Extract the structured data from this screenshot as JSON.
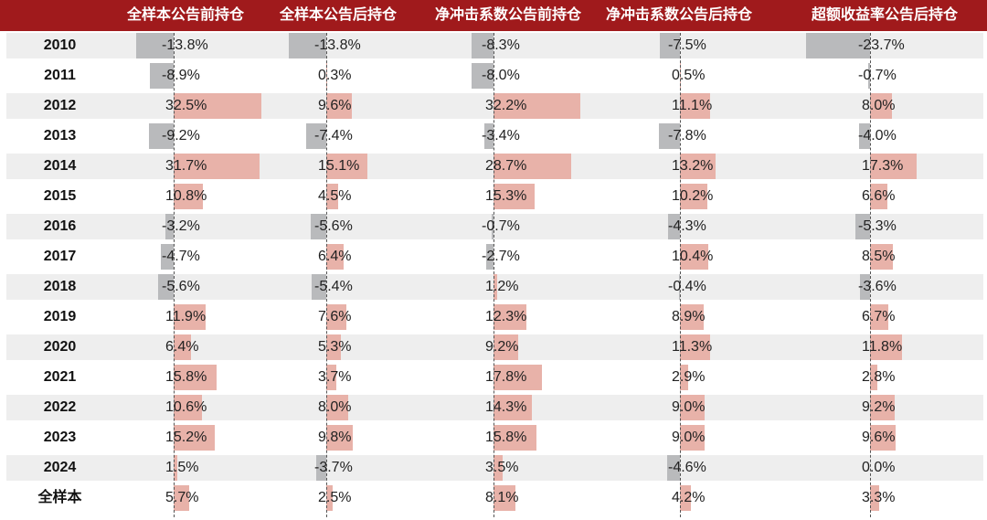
{
  "chart_data": {
    "type": "table",
    "columns": [
      "全样本公告前持仓",
      "全样本公告后持仓",
      "净冲击系数公告前持仓",
      "净冲击系数公告后持仓",
      "超额收益率公告后持仓"
    ],
    "rows": [
      "2010",
      "2011",
      "2012",
      "2013",
      "2014",
      "2015",
      "2016",
      "2017",
      "2018",
      "2019",
      "2020",
      "2021",
      "2022",
      "2023",
      "2024",
      "全样本"
    ],
    "values": [
      [
        -13.8,
        -13.8,
        -8.3,
        -7.5,
        -23.7
      ],
      [
        -8.9,
        0.3,
        -8.0,
        0.5,
        -0.7
      ],
      [
        32.5,
        9.6,
        32.2,
        11.1,
        8.0
      ],
      [
        -9.2,
        -7.4,
        -3.4,
        -7.8,
        -4.0
      ],
      [
        31.7,
        15.1,
        28.7,
        13.2,
        17.3
      ],
      [
        10.8,
        4.5,
        15.3,
        10.2,
        6.6
      ],
      [
        -3.2,
        -5.6,
        -0.7,
        -4.3,
        -5.3
      ],
      [
        -4.7,
        6.4,
        -2.7,
        10.4,
        8.5
      ],
      [
        -5.6,
        -5.4,
        1.2,
        -0.4,
        -3.6
      ],
      [
        11.9,
        7.6,
        12.3,
        8.9,
        6.7
      ],
      [
        6.4,
        5.3,
        9.2,
        11.3,
        11.8
      ],
      [
        15.8,
        3.7,
        17.8,
        2.9,
        2.8
      ],
      [
        10.6,
        8.0,
        14.3,
        9.0,
        9.2
      ],
      [
        15.2,
        9.8,
        15.8,
        9.0,
        9.6
      ],
      [
        1.5,
        -3.7,
        3.5,
        -4.6,
        0.0
      ],
      [
        5.7,
        2.5,
        8.1,
        4.2,
        3.3
      ]
    ],
    "labels": [
      [
        "-13.8%",
        "-13.8%",
        "-8.3%",
        "-7.5%",
        "-23.7%"
      ],
      [
        "-8.9%",
        "0.3%",
        "-8.0%",
        "0.5%",
        "-0.7%"
      ],
      [
        "32.5%",
        "9.6%",
        "32.2%",
        "11.1%",
        "8.0%"
      ],
      [
        "-9.2%",
        "-7.4%",
        "-3.4%",
        "-7.8%",
        "-4.0%"
      ],
      [
        "31.7%",
        "15.1%",
        "28.7%",
        "13.2%",
        "17.3%"
      ],
      [
        "10.8%",
        "4.5%",
        "15.3%",
        "10.2%",
        "6.6%"
      ],
      [
        "-3.2%",
        "-5.6%",
        "-0.7%",
        "-4.3%",
        "-5.3%"
      ],
      [
        "-4.7%",
        "6.4%",
        "-2.7%",
        "10.4%",
        "8.5%"
      ],
      [
        "-5.6%",
        "-5.4%",
        "1.2%",
        "-0.4%",
        "-3.6%"
      ],
      [
        "11.9%",
        "7.6%",
        "12.3%",
        "8.9%",
        "6.7%"
      ],
      [
        "6.4%",
        "5.3%",
        "9.2%",
        "11.3%",
        "11.8%"
      ],
      [
        "15.8%",
        "3.7%",
        "17.8%",
        "2.9%",
        "2.8%"
      ],
      [
        "10.6%",
        "8.0%",
        "14.3%",
        "9.0%",
        "9.2%"
      ],
      [
        "15.2%",
        "9.8%",
        "15.8%",
        "9.0%",
        "9.6%"
      ],
      [
        "1.5%",
        "-3.7%",
        "3.5%",
        "-4.6%",
        "0.0%"
      ],
      [
        "5.7%",
        "2.5%",
        "8.1%",
        "4.2%",
        "3.3%"
      ]
    ],
    "colors": {
      "header_bg": "#a01a1c",
      "header_text": "#ffffff",
      "positive_bar": "#e8b2a9",
      "negative_bar": "#b9babc",
      "row_shade": "#eeeeee"
    }
  }
}
